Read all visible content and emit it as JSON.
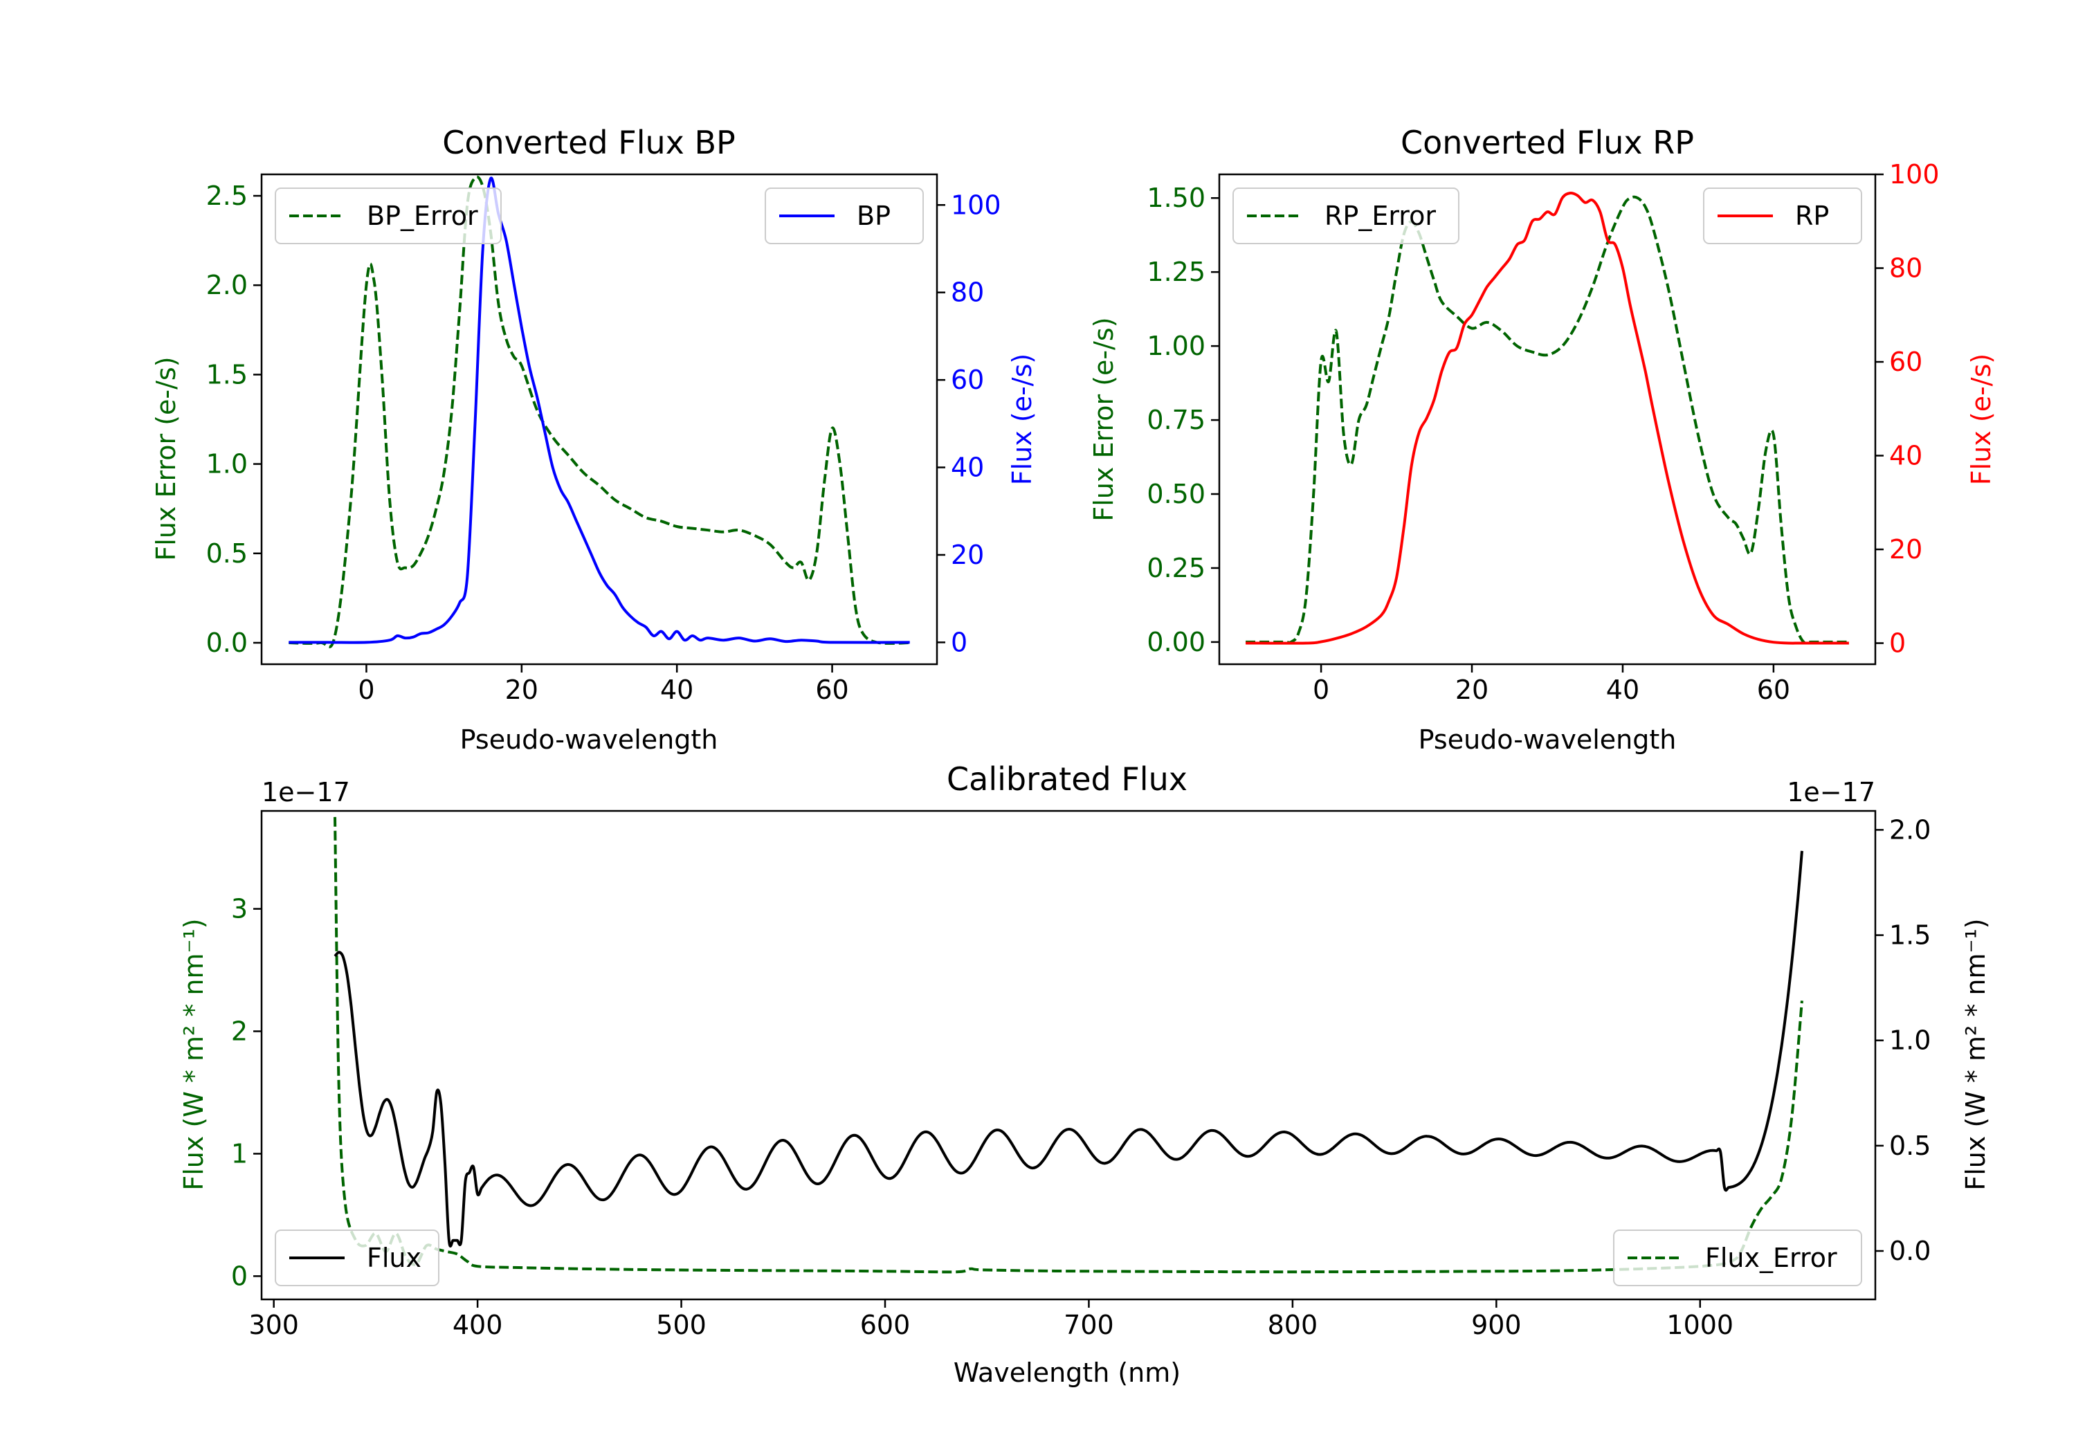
{
  "colors": {
    "green": "#006400",
    "blue": "#0000ff",
    "red": "#ff0000",
    "black": "#000000",
    "frame": "#000000",
    "legend_edge": "#cccccc"
  },
  "chart_data": [
    {
      "id": "bp",
      "type": "line",
      "title": "Converted Flux BP",
      "xlabel": "Pseudo-wavelength",
      "xlim": [
        -13.5,
        73.5
      ],
      "xticks": [
        0,
        20,
        40,
        60
      ],
      "left_axis": {
        "label": "Flux Error (e-/s)",
        "color": "#006400",
        "ylim": [
          -0.12,
          2.62
        ],
        "ticks": [
          0.0,
          0.5,
          1.0,
          1.5,
          2.0,
          2.5
        ],
        "tick_labels": [
          "0.0",
          "0.5",
          "1.0",
          "1.5",
          "2.0",
          "2.5"
        ],
        "offset_label": ""
      },
      "right_axis": {
        "label": "Flux (e-/s)",
        "color": "#0000ff",
        "ylim": [
          -5,
          107
        ],
        "ticks": [
          0,
          20,
          40,
          60,
          80,
          100
        ],
        "tick_labels": [
          "0",
          "20",
          "40",
          "60",
          "80",
          "100"
        ],
        "offset_label": ""
      },
      "series": [
        {
          "name": "BP_Error",
          "axis": "left",
          "style": "dashed",
          "color": "#006400",
          "x": [
            -10,
            -6,
            -4,
            -2,
            0,
            1,
            2,
            3,
            4,
            5,
            6,
            7,
            8,
            9,
            10,
            11,
            12,
            13,
            14,
            15,
            16,
            17,
            18,
            19,
            20,
            22,
            24,
            26,
            28,
            30,
            32,
            34,
            36,
            38,
            40,
            42,
            44,
            46,
            48,
            50,
            52,
            54,
            55,
            56,
            57,
            58,
            59,
            60,
            61,
            62,
            63,
            64,
            66,
            70
          ],
          "values": [
            0,
            0,
            0.05,
            0.8,
            2.0,
            2.02,
            1.5,
            0.8,
            0.45,
            0.42,
            0.43,
            0.5,
            0.6,
            0.75,
            0.95,
            1.3,
            1.85,
            2.45,
            2.6,
            2.55,
            2.3,
            1.9,
            1.7,
            1.6,
            1.55,
            1.3,
            1.15,
            1.05,
            0.95,
            0.88,
            0.8,
            0.75,
            0.7,
            0.68,
            0.65,
            0.64,
            0.63,
            0.62,
            0.63,
            0.6,
            0.55,
            0.45,
            0.42,
            0.45,
            0.35,
            0.5,
            0.9,
            1.2,
            1.0,
            0.6,
            0.2,
            0.05,
            0,
            0
          ]
        },
        {
          "name": "BP",
          "axis": "right",
          "style": "solid",
          "color": "#0000ff",
          "x": [
            -10,
            -5,
            0,
            3,
            4,
            5,
            6,
            7,
            8,
            9,
            10,
            11,
            12,
            13,
            14,
            15,
            16,
            17,
            18,
            19,
            20,
            21,
            22,
            23,
            24,
            25,
            26,
            27,
            28,
            29,
            30,
            31,
            32,
            33,
            34,
            35,
            36,
            37,
            38,
            39,
            40,
            41,
            42,
            43,
            44,
            46,
            48,
            50,
            52,
            54,
            56,
            58,
            60,
            70
          ],
          "values": [
            0,
            0,
            0,
            0.5,
            1.5,
            1.0,
            1.2,
            2.0,
            2.2,
            3.0,
            4.0,
            6.0,
            9.0,
            15.0,
            50.0,
            90.0,
            106.0,
            98.0,
            92.0,
            82.0,
            72.0,
            63.0,
            56.0,
            48.0,
            40.0,
            35.0,
            32.0,
            28.0,
            24.0,
            20.0,
            16.0,
            13.0,
            11.0,
            8.0,
            6.0,
            4.5,
            3.5,
            1.5,
            2.5,
            0.8,
            2.5,
            0.5,
            1.5,
            0.5,
            1.0,
            0.5,
            1.0,
            0.3,
            0.8,
            0.2,
            0.5,
            0.3,
            0,
            0
          ]
        }
      ],
      "legend_left": {
        "label": "BP_Error",
        "position": "upper left"
      },
      "legend_right": {
        "label": "BP",
        "position": "upper right"
      }
    },
    {
      "id": "rp",
      "type": "line",
      "title": "Converted Flux RP",
      "xlabel": "Pseudo-wavelength",
      "xlim": [
        -13.5,
        73.5
      ],
      "xticks": [
        0,
        20,
        40,
        60
      ],
      "left_axis": {
        "label": "Flux Error (e-/s)",
        "color": "#006400",
        "ylim": [
          -0.075,
          1.58
        ],
        "ticks": [
          0.0,
          0.25,
          0.5,
          0.75,
          1.0,
          1.25,
          1.5
        ],
        "tick_labels": [
          "0.00",
          "0.25",
          "0.50",
          "0.75",
          "1.00",
          "1.25",
          "1.50"
        ],
        "offset_label": ""
      },
      "right_axis": {
        "label": "Flux (e-/s)",
        "color": "#ff0000",
        "ylim": [
          -4.5,
          100
        ],
        "ticks": [
          0,
          20,
          40,
          60,
          80,
          100
        ],
        "tick_labels": [
          "0",
          "20",
          "40",
          "60",
          "80",
          "100"
        ],
        "offset_label": ""
      },
      "series": [
        {
          "name": "RP_Error",
          "axis": "left",
          "style": "dashed",
          "color": "#006400",
          "x": [
            -10,
            -5,
            -4,
            -3,
            -2,
            -1,
            0,
            1,
            2,
            3,
            4,
            5,
            6,
            7,
            8,
            9,
            10,
            11,
            12,
            13,
            14,
            15,
            16,
            18,
            20,
            22,
            24,
            26,
            28,
            30,
            32,
            34,
            36,
            38,
            40,
            41,
            42,
            43,
            44,
            46,
            48,
            50,
            52,
            54,
            55,
            56,
            57,
            58,
            59,
            60,
            61,
            62,
            63,
            64,
            65,
            70
          ],
          "values": [
            0,
            0,
            0,
            0.03,
            0.15,
            0.5,
            0.95,
            0.88,
            1.05,
            0.7,
            0.6,
            0.75,
            0.8,
            0.9,
            1.0,
            1.1,
            1.25,
            1.38,
            1.42,
            1.38,
            1.3,
            1.22,
            1.15,
            1.1,
            1.06,
            1.08,
            1.05,
            1.0,
            0.98,
            0.97,
            1.0,
            1.08,
            1.2,
            1.35,
            1.47,
            1.5,
            1.5,
            1.47,
            1.4,
            1.2,
            0.95,
            0.7,
            0.5,
            0.42,
            0.4,
            0.35,
            0.3,
            0.45,
            0.65,
            0.7,
            0.4,
            0.15,
            0.05,
            0,
            0,
            0
          ]
        },
        {
          "name": "RP",
          "axis": "right",
          "style": "solid",
          "color": "#ff0000",
          "x": [
            -10,
            -2,
            0,
            2,
            4,
            6,
            8,
            9,
            10,
            11,
            12,
            13,
            14,
            15,
            16,
            17,
            18,
            19,
            20,
            21,
            22,
            23,
            24,
            25,
            26,
            27,
            28,
            29,
            30,
            31,
            32,
            33,
            34,
            35,
            36,
            37,
            38,
            39,
            40,
            41,
            42,
            43,
            44,
            46,
            48,
            50,
            52,
            54,
            56,
            58,
            60,
            62,
            64,
            70
          ],
          "values": [
            0,
            0,
            0.3,
            1.0,
            2.0,
            3.5,
            6.0,
            9.0,
            14.0,
            25.0,
            38.0,
            45.0,
            48.0,
            52.0,
            58.0,
            62.0,
            63.0,
            68.0,
            70.0,
            73.0,
            76.0,
            78.0,
            80.0,
            82.0,
            85.0,
            86.0,
            90.0,
            90.5,
            92.0,
            91.5,
            95.0,
            96.0,
            95.5,
            94.0,
            94.5,
            92.0,
            86.0,
            85.0,
            80.0,
            72.0,
            65.0,
            58.0,
            50.0,
            35.0,
            22.0,
            12.0,
            6.0,
            4.0,
            2.0,
            0.8,
            0.2,
            0,
            0,
            0
          ]
        }
      ],
      "legend_left": {
        "label": "RP_Error",
        "position": "upper left"
      },
      "legend_right": {
        "label": "RP",
        "position": "upper right"
      }
    },
    {
      "id": "cal",
      "type": "line",
      "title": "Calibrated Flux",
      "xlabel": "Wavelength (nm)",
      "xlim": [
        294,
        1086
      ],
      "xticks": [
        300,
        400,
        500,
        600,
        700,
        800,
        900,
        1000
      ],
      "left_axis": {
        "label": "Flux (W * m² * nm⁻¹)",
        "color": "#006400",
        "ylim": [
          -0.19,
          3.8
        ],
        "ticks": [
          0,
          1,
          2,
          3
        ],
        "tick_labels": [
          "0",
          "1",
          "2",
          "3"
        ],
        "offset_label": "1e−17"
      },
      "right_axis": {
        "label": "Flux (W * m² * nm⁻¹)",
        "color": "#000000",
        "ylim": [
          -0.23,
          2.09
        ],
        "ticks": [
          0.0,
          0.5,
          1.0,
          1.5,
          2.0
        ],
        "tick_labels": [
          "0.0",
          "0.5",
          "1.0",
          "1.5",
          "2.0"
        ],
        "offset_label": "1e−17"
      },
      "series": [
        {
          "name": "Flux_Error",
          "axis": "left",
          "style": "dashed",
          "color": "#006400",
          "x": [
            330,
            332,
            335,
            340,
            345,
            350,
            355,
            360,
            365,
            370,
            375,
            380,
            385,
            390,
            395,
            400,
            420,
            450,
            500,
            550,
            600,
            635,
            642,
            650,
            700,
            800,
            900,
            950,
            1000,
            1015,
            1020,
            1025,
            1030,
            1035,
            1040,
            1045,
            1050
          ],
          "values": [
            3.75,
            1.5,
            0.6,
            0.3,
            0.25,
            0.35,
            0.2,
            0.35,
            0.15,
            0.1,
            0.25,
            0.22,
            0.2,
            0.18,
            0.12,
            0.08,
            0.07,
            0.06,
            0.05,
            0.045,
            0.04,
            0.035,
            0.06,
            0.05,
            0.04,
            0.035,
            0.04,
            0.05,
            0.08,
            0.12,
            0.2,
            0.4,
            0.55,
            0.65,
            0.8,
            1.3,
            2.25
          ]
        }
      ],
      "series2_name": "Flux",
      "series2_axis": "right",
      "series2_color": "#000000",
      "legend_left": {
        "label": "Flux",
        "position": "lower left"
      },
      "legend_right": {
        "label": "Flux_Error",
        "position": "lower right"
      }
    }
  ]
}
